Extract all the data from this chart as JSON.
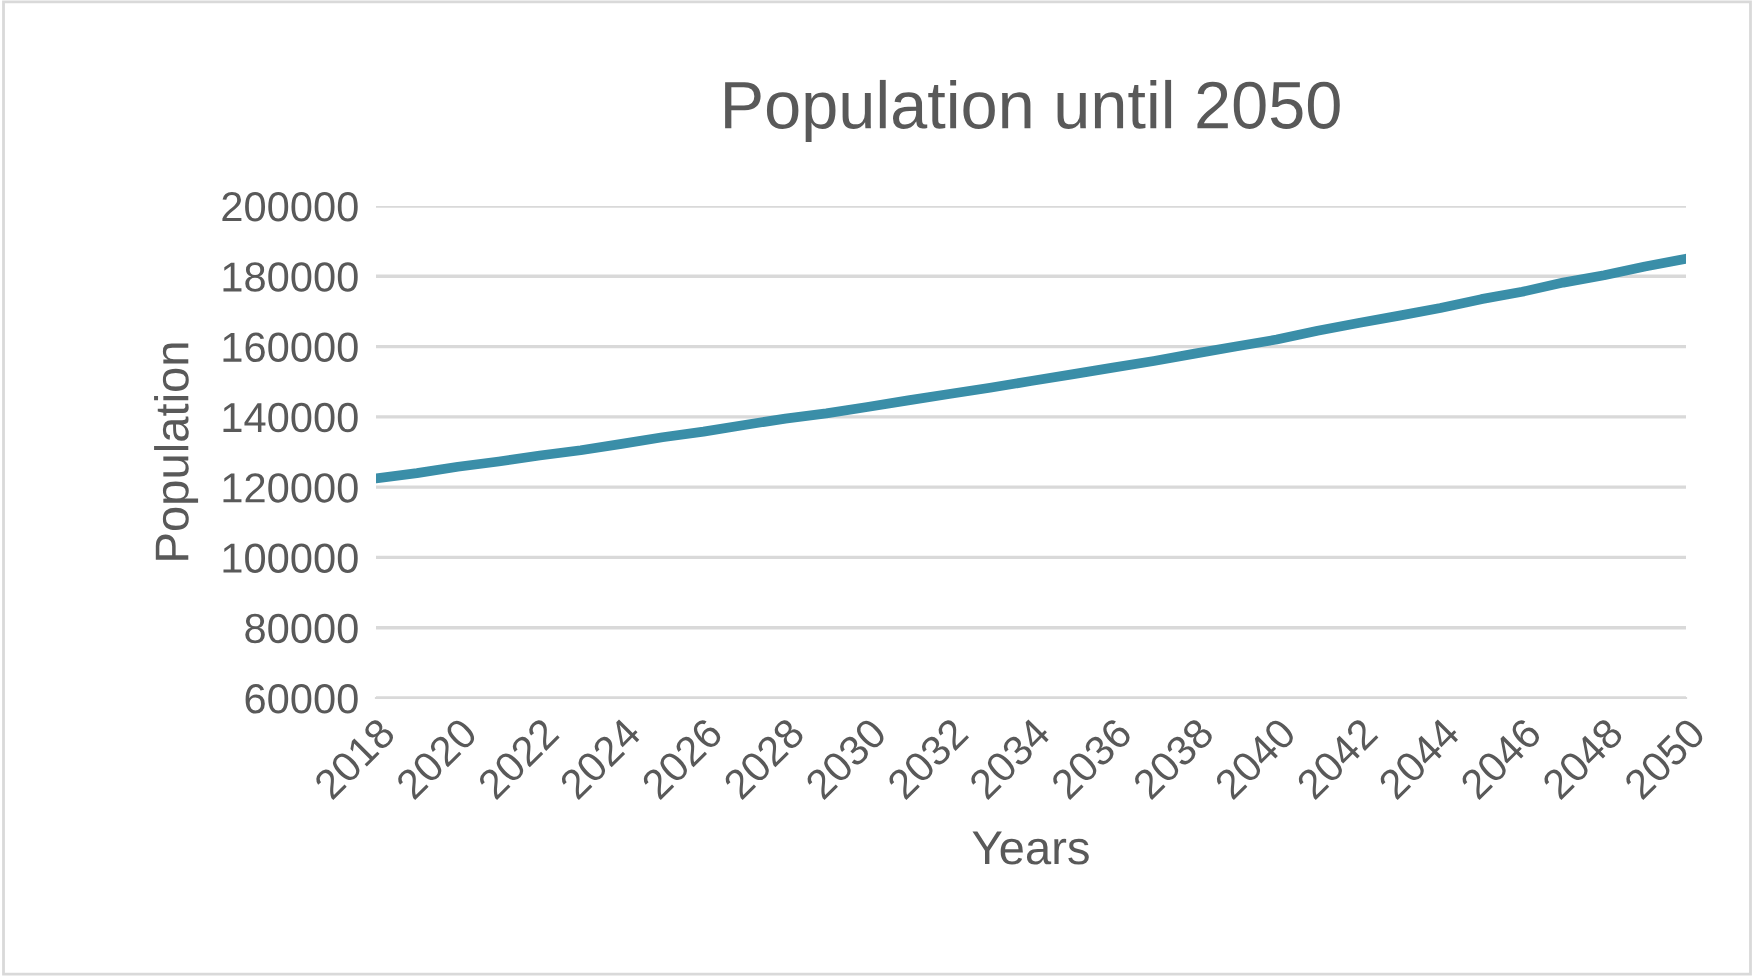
{
  "chart_data": {
    "type": "line",
    "title": "Population until 2050",
    "xlabel": "Years",
    "ylabel": "Population",
    "x": [
      2018,
      2019,
      2020,
      2021,
      2022,
      2023,
      2024,
      2025,
      2026,
      2027,
      2028,
      2029,
      2030,
      2031,
      2032,
      2033,
      2034,
      2035,
      2036,
      2037,
      2038,
      2039,
      2040,
      2041,
      2042,
      2043,
      2044,
      2045,
      2046,
      2047,
      2048,
      2049,
      2050
    ],
    "series": [
      {
        "color": "#3a8ea8",
        "values": [
          122500,
          124000,
          125800,
          127300,
          129000,
          130500,
          132300,
          134200,
          135800,
          137700,
          139500,
          141000,
          142800,
          144700,
          146500,
          148300,
          150200,
          152100,
          154000,
          155900,
          158000,
          160000,
          162000,
          164500,
          166700,
          168800,
          171000,
          173500,
          175600,
          178200,
          180300,
          182800,
          185000
        ]
      }
    ],
    "xlim": [
      2018,
      2050
    ],
    "xticks": [
      2018,
      2020,
      2022,
      2024,
      2026,
      2028,
      2030,
      2032,
      2034,
      2036,
      2038,
      2040,
      2042,
      2044,
      2046,
      2048,
      2050
    ],
    "ylim": [
      60000,
      200000
    ],
    "yticks": [
      60000,
      80000,
      100000,
      120000,
      140000,
      160000,
      180000,
      200000
    ],
    "grid": "y",
    "legend": false,
    "marker": "none",
    "line_style": "solid"
  }
}
